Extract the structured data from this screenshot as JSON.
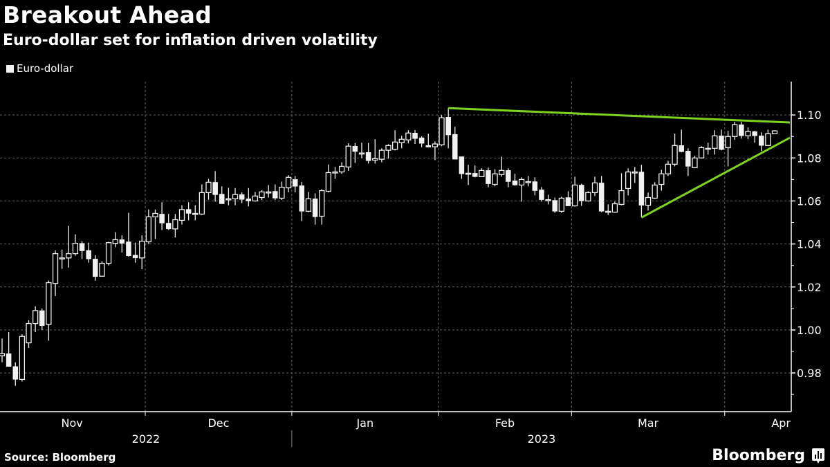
{
  "header": {
    "title": "Breakout Ahead",
    "subtitle": "Euro-dollar set for inflation driven volatility"
  },
  "footer": {
    "source": "Source: Bloomberg",
    "brand": "Bloomberg",
    "brand_icon": "bloomberg-bar-chart-icon"
  },
  "colors": {
    "background": "#000000",
    "candle": "#f2f2f2",
    "trendline": "#7ed321",
    "grid": "#666666"
  },
  "chart_data": {
    "type": "candlestick",
    "title": "Breakout Ahead",
    "subtitle": "Euro-dollar set for inflation driven volatility",
    "legend": {
      "position": "top-left",
      "entries": [
        "Euro-dollar"
      ]
    },
    "series_name": "Euro-dollar",
    "ylim": [
      0.962,
      1.1155
    ],
    "yticks": [
      "0.98",
      "1.00",
      "1.02",
      "1.04",
      "1.06",
      "1.08",
      "1.10"
    ],
    "ytick_values": [
      0.98,
      1.0,
      1.02,
      1.04,
      1.06,
      1.08,
      1.1
    ],
    "y_axis_side": "right",
    "grid": true,
    "months": [
      {
        "label": "Nov",
        "start": "2022-11-01",
        "end": "2022-11-30"
      },
      {
        "label": "Dec",
        "start": "2022-12-01",
        "end": "2022-12-30"
      },
      {
        "label": "Jan",
        "start": "2023-01-02",
        "end": "2023-01-31"
      },
      {
        "label": "Feb",
        "start": "2023-02-01",
        "end": "2023-02-28"
      },
      {
        "label": "Mar",
        "start": "2023-03-01",
        "end": "2023-03-31"
      },
      {
        "label": "Apr",
        "start": "2023-04-03",
        "end": "2023-04-12"
      }
    ],
    "years": [
      {
        "label": "2022",
        "start": "2022-11-01",
        "end": "2022-12-30"
      },
      {
        "label": "2023",
        "start": "2023-01-02",
        "end": "2023-04-12"
      }
    ],
    "columns": [
      "date",
      "open",
      "high",
      "low",
      "close"
    ],
    "candles": [
      [
        "2022-11-01",
        0.988,
        0.996,
        0.985,
        0.989
      ],
      [
        "2022-11-02",
        0.989,
        0.999,
        0.983,
        0.983
      ],
      [
        "2022-11-03",
        0.983,
        0.985,
        0.974,
        0.977
      ],
      [
        "2022-11-04",
        0.977,
        0.998,
        0.976,
        0.997
      ],
      [
        "2022-11-07",
        0.994,
        1.0045,
        0.9916,
        1.003
      ],
      [
        "2022-11-08",
        1.003,
        1.011,
        0.999,
        1.009
      ],
      [
        "2022-11-09",
        1.009,
        1.01,
        1.0,
        1.002
      ],
      [
        "2022-11-10",
        1.0026,
        1.023,
        0.995,
        1.022
      ],
      [
        "2022-11-11",
        1.0216,
        1.037,
        1.0158,
        1.0355
      ],
      [
        "2022-11-14",
        1.0335,
        1.0374,
        1.0284,
        1.0335
      ],
      [
        "2022-11-15",
        1.0335,
        1.0484,
        1.029,
        1.0355
      ],
      [
        "2022-11-16",
        1.0355,
        1.0445,
        1.0345,
        1.0403
      ],
      [
        "2022-11-17",
        1.0403,
        1.0413,
        1.033,
        1.0368
      ],
      [
        "2022-11-18",
        1.037,
        1.0406,
        1.0313,
        1.033
      ],
      [
        "2022-11-21",
        1.033,
        1.0348,
        1.0229,
        1.0248
      ],
      [
        "2022-11-22",
        1.025,
        1.032,
        1.025,
        1.031
      ],
      [
        "2022-11-23",
        1.031,
        1.041,
        1.03,
        1.0406
      ],
      [
        "2022-11-24",
        1.0403,
        1.0455,
        1.0385,
        1.042
      ],
      [
        "2022-11-25",
        1.042,
        1.044,
        1.036,
        1.0403
      ],
      [
        "2022-11-28",
        1.041,
        1.0545,
        1.034,
        1.0345
      ],
      [
        "2022-11-29",
        1.0348,
        1.0406,
        1.0313,
        1.0335
      ],
      [
        "2022-11-30",
        1.0335,
        1.044,
        1.0283,
        1.0413
      ],
      [
        "2022-12-01",
        1.041,
        1.056,
        1.04,
        1.0526
      ],
      [
        "2022-12-02",
        1.0526,
        1.056,
        1.0423,
        1.0542
      ],
      [
        "2022-12-05",
        1.0539,
        1.0594,
        1.0465,
        1.0497
      ],
      [
        "2022-12-06",
        1.0497,
        1.054,
        1.0465,
        1.047
      ],
      [
        "2022-12-07",
        1.047,
        1.0539,
        1.043,
        1.0513
      ],
      [
        "2022-12-08",
        1.051,
        1.058,
        1.049,
        1.056
      ],
      [
        "2022-12-09",
        1.0561,
        1.0594,
        1.051,
        1.0542
      ],
      [
        "2022-12-12",
        1.0542,
        1.058,
        1.051,
        1.0542
      ],
      [
        "2022-12-13",
        1.0539,
        1.0677,
        1.0535,
        1.0639
      ],
      [
        "2022-12-14",
        1.0639,
        1.0703,
        1.0606,
        1.0687
      ],
      [
        "2022-12-15",
        1.0687,
        1.0739,
        1.0597,
        1.0629
      ],
      [
        "2022-12-16",
        1.0632,
        1.0668,
        1.0587,
        1.0587
      ],
      [
        "2022-12-19",
        1.061,
        1.0661,
        1.058,
        1.061
      ],
      [
        "2022-12-20",
        1.061,
        1.066,
        1.058,
        1.063
      ],
      [
        "2022-12-21",
        1.063,
        1.064,
        1.059,
        1.0607
      ],
      [
        "2022-12-22",
        1.061,
        1.066,
        1.0575,
        1.06
      ],
      [
        "2022-12-23",
        1.06,
        1.0642,
        1.0597,
        1.0623
      ],
      [
        "2022-12-26",
        1.0616,
        1.065,
        1.0605,
        1.0642
      ],
      [
        "2022-12-27",
        1.0642,
        1.0674,
        1.0616,
        1.0642
      ],
      [
        "2022-12-28",
        1.0645,
        1.0677,
        1.0605,
        1.0613
      ],
      [
        "2022-12-29",
        1.0613,
        1.069,
        1.0605,
        1.0664
      ],
      [
        "2022-12-30",
        1.0661,
        1.072,
        1.064,
        1.071
      ],
      [
        "2023-01-02",
        1.07,
        1.0716,
        1.064,
        1.0668
      ],
      [
        "2023-01-03",
        1.0671,
        1.0688,
        1.0506,
        1.0552
      ],
      [
        "2023-01-04",
        1.0552,
        1.0642,
        1.0548,
        1.061
      ],
      [
        "2023-01-05",
        1.061,
        1.0635,
        1.049,
        1.0526
      ],
      [
        "2023-01-06",
        1.0529,
        1.0655,
        1.049,
        1.0648
      ],
      [
        "2023-01-09",
        1.0645,
        1.077,
        1.064,
        1.0732
      ],
      [
        "2023-01-10",
        1.0735,
        1.0758,
        1.0703,
        1.0735
      ],
      [
        "2023-01-11",
        1.0735,
        1.078,
        1.0726,
        1.0761
      ],
      [
        "2023-01-12",
        1.0758,
        1.0868,
        1.074,
        1.0855
      ],
      [
        "2023-01-13",
        1.0855,
        1.087,
        1.0777,
        1.083
      ],
      [
        "2023-01-16",
        1.0823,
        1.0871,
        1.08,
        1.0823
      ],
      [
        "2023-01-17",
        1.0826,
        1.087,
        1.0774,
        1.0787
      ],
      [
        "2023-01-18",
        1.079,
        1.0887,
        1.0774,
        1.0797
      ],
      [
        "2023-01-19",
        1.0794,
        1.0845,
        1.078,
        1.0836
      ],
      [
        "2023-01-20",
        1.0836,
        1.0864,
        1.0797,
        1.0858
      ],
      [
        "2023-01-23",
        1.084,
        1.0929,
        1.0835,
        1.0874
      ],
      [
        "2023-01-24",
        1.0871,
        1.0903,
        1.0845,
        1.0887
      ],
      [
        "2023-01-25",
        1.0884,
        1.0929,
        1.0868,
        1.0916
      ],
      [
        "2023-01-26",
        1.0916,
        1.093,
        1.0865,
        1.089
      ],
      [
        "2023-01-27",
        1.0894,
        1.09,
        1.085,
        1.0868
      ],
      [
        "2023-01-30",
        1.0858,
        1.0913,
        1.0852,
        1.085
      ],
      [
        "2023-01-31",
        1.0852,
        1.0877,
        1.079,
        1.0865
      ],
      [
        "2023-02-01",
        1.0861,
        1.1,
        1.0855,
        1.0987
      ],
      [
        "2023-02-02",
        1.099,
        1.1032,
        1.0845,
        1.0907
      ],
      [
        "2023-02-03",
        1.091,
        1.0945,
        1.0794,
        1.0794
      ],
      [
        "2023-02-06",
        1.0806,
        1.0806,
        1.0703,
        1.0726
      ],
      [
        "2023-02-07",
        1.0729,
        1.0768,
        1.0674,
        1.0729
      ],
      [
        "2023-02-08",
        1.0729,
        1.0765,
        1.071,
        1.0713
      ],
      [
        "2023-02-09",
        1.0713,
        1.0752,
        1.0713,
        1.0742
      ],
      [
        "2023-02-10",
        1.0742,
        1.0755,
        1.0664,
        1.068
      ],
      [
        "2023-02-13",
        1.0677,
        1.0748,
        1.0668,
        1.0726
      ],
      [
        "2023-02-14",
        1.0723,
        1.0806,
        1.0713,
        1.0742
      ],
      [
        "2023-02-15",
        1.0742,
        1.0752,
        1.0664,
        1.069
      ],
      [
        "2023-02-16",
        1.0694,
        1.0726,
        1.0671,
        1.0674
      ],
      [
        "2023-02-17",
        1.0674,
        1.071,
        1.0597,
        1.07
      ],
      [
        "2023-02-20",
        1.069,
        1.0716,
        1.0668,
        1.069
      ],
      [
        "2023-02-21",
        1.069,
        1.071,
        1.0626,
        1.0648
      ],
      [
        "2023-02-22",
        1.0652,
        1.0665,
        1.0597,
        1.0606
      ],
      [
        "2023-02-23",
        1.0606,
        1.0629,
        1.0584,
        1.0606
      ],
      [
        "2023-02-24",
        1.0603,
        1.0616,
        1.0545,
        1.0552
      ],
      [
        "2023-02-27",
        1.0552,
        1.062,
        1.0545,
        1.0613
      ],
      [
        "2023-02-28",
        1.0616,
        1.0645,
        1.0577,
        1.0577
      ],
      [
        "2023-03-01",
        1.0577,
        1.0713,
        1.0574,
        1.0674
      ],
      [
        "2023-03-02",
        1.0674,
        1.068,
        1.0577,
        1.06
      ],
      [
        "2023-03-03",
        1.06,
        1.0645,
        1.0597,
        1.0639
      ],
      [
        "2023-03-06",
        1.0639,
        1.0713,
        1.0623,
        1.0684
      ],
      [
        "2023-03-07",
        1.0684,
        1.0716,
        1.0548,
        1.0552
      ],
      [
        "2023-03-08",
        1.0552,
        1.0584,
        1.0535,
        1.0552
      ],
      [
        "2023-03-09",
        1.0548,
        1.0597,
        1.0545,
        1.0587
      ],
      [
        "2023-03-10",
        1.0584,
        1.0729,
        1.058,
        1.0648
      ],
      [
        "2023-03-13",
        1.0658,
        1.0752,
        1.0626,
        1.0735
      ],
      [
        "2023-03-14",
        1.0735,
        1.0758,
        1.0684,
        1.0735
      ],
      [
        "2023-03-15",
        1.0735,
        1.0768,
        1.0523,
        1.058
      ],
      [
        "2023-03-16",
        1.058,
        1.0639,
        1.0555,
        1.0616
      ],
      [
        "2023-03-17",
        1.0613,
        1.0687,
        1.061,
        1.0674
      ],
      [
        "2023-03-20",
        1.0677,
        1.0745,
        1.0648,
        1.0726
      ],
      [
        "2023-03-21",
        1.0726,
        1.0787,
        1.0716,
        1.0771
      ],
      [
        "2023-03-22",
        1.0771,
        1.0913,
        1.0761,
        1.0858
      ],
      [
        "2023-03-23",
        1.0858,
        1.0932,
        1.0826,
        1.0829
      ],
      [
        "2023-03-24",
        1.0832,
        1.0845,
        1.0716,
        1.0761
      ],
      [
        "2023-03-27",
        1.0755,
        1.081,
        1.0752,
        1.08
      ],
      [
        "2023-03-28",
        1.08,
        1.0855,
        1.0797,
        1.0848
      ],
      [
        "2023-03-29",
        1.0845,
        1.0871,
        1.0816,
        1.0845
      ],
      [
        "2023-03-30",
        1.0845,
        1.0929,
        1.0816,
        1.0903
      ],
      [
        "2023-03-31",
        1.0903,
        1.0932,
        1.0835,
        1.0839
      ],
      [
        "2023-04-03",
        1.0848,
        1.0926,
        1.0761,
        1.09
      ],
      [
        "2023-04-04",
        1.09,
        1.0968,
        1.0884,
        1.0955
      ],
      [
        "2023-04-05",
        1.0955,
        1.0968,
        1.089,
        1.0903
      ],
      [
        "2023-04-06",
        1.0903,
        1.0942,
        1.0887,
        1.0923
      ],
      [
        "2023-04-07",
        1.0923,
        1.0926,
        1.0871,
        1.0903
      ],
      [
        "2023-04-10",
        1.0903,
        1.0919,
        1.0832,
        1.0858
      ],
      [
        "2023-04-11",
        1.0858,
        1.0932,
        1.0855,
        1.0913
      ],
      [
        "2023-04-12",
        1.0913,
        1.0929,
        1.0913,
        1.0926
      ]
    ],
    "trendlines": [
      {
        "kind": "resistance",
        "from": [
          "2023-02-02",
          1.1032
        ],
        "to_value_at_right_edge": 1.0965
      },
      {
        "kind": "support",
        "from": [
          "2023-03-15",
          1.0523
        ],
        "to_value_at_right_edge": 1.0894
      }
    ]
  }
}
